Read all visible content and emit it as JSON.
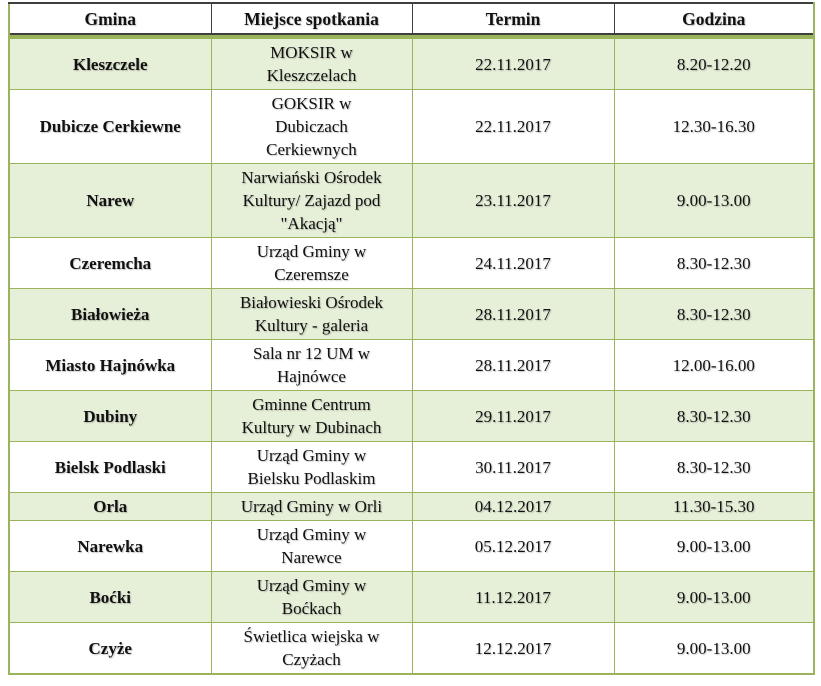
{
  "table": {
    "columns": [
      {
        "id": "gmina",
        "label": "Gmina"
      },
      {
        "id": "miejsce",
        "label": "Miejsce spotkania"
      },
      {
        "id": "termin",
        "label": "Termin"
      },
      {
        "id": "godzina",
        "label": "Godzina"
      }
    ],
    "rows": [
      {
        "gmina": "Kleszczele",
        "miejsce": "MOKSIR w\nKleszczelach",
        "termin": "22.11.2017",
        "godzina": "8.20-12.20"
      },
      {
        "gmina": "Dubicze Cerkiewne",
        "miejsce": "GOKSIR w\nDubiczach\nCerkiewnych",
        "termin": "22.11.2017",
        "godzina": "12.30-16.30"
      },
      {
        "gmina": "Narew",
        "miejsce": "Narwiański Ośrodek\nKultury/ Zajazd pod\n\"Akacją\"",
        "termin": "23.11.2017",
        "godzina": "9.00-13.00"
      },
      {
        "gmina": "Czeremcha",
        "miejsce": "Urząd Gminy w\nCzeremsze",
        "termin": "24.11.2017",
        "godzina": "8.30-12.30"
      },
      {
        "gmina": "Białowieża",
        "miejsce": "Białowieski Ośrodek\nKultury - galeria",
        "termin": "28.11.2017",
        "godzina": "8.30-12.30"
      },
      {
        "gmina": "Miasto Hajnówka",
        "miejsce": "Sala nr 12 UM w\nHajnówce",
        "termin": "28.11.2017",
        "godzina": "12.00-16.00"
      },
      {
        "gmina": "Dubiny",
        "miejsce": "Gminne Centrum\nKultury w Dubinach",
        "termin": "29.11.2017",
        "godzina": "8.30-12.30"
      },
      {
        "gmina": "Bielsk Podlaski",
        "miejsce": "Urząd Gminy w\nBielsku Podlaskim",
        "termin": "30.11.2017",
        "godzina": "8.30-12.30"
      },
      {
        "gmina": "Orla",
        "miejsce": "Urząd Gminy w Orli",
        "termin": "04.12.2017",
        "godzina": "11.30-15.30"
      },
      {
        "gmina": "Narewka",
        "miejsce": "Urząd Gminy w\nNarewce",
        "termin": "05.12.2017",
        "godzina": "9.00-13.00"
      },
      {
        "gmina": "Boćki",
        "miejsce": "Urząd Gminy w\nBoćkach",
        "termin": "11.12.2017",
        "godzina": "9.00-13.00"
      },
      {
        "gmina": "Czyże",
        "miejsce": "Świetlica wiejska w\nCzyżach",
        "termin": "12.12.2017",
        "godzina": "9.00-13.00"
      }
    ],
    "colors": {
      "border_green": "#9ab45c",
      "shaded_row_bg": "#e6efd8",
      "header_border_dark": "#3f3f3f",
      "text": "#111111",
      "page_bg": "#ffffff"
    }
  }
}
